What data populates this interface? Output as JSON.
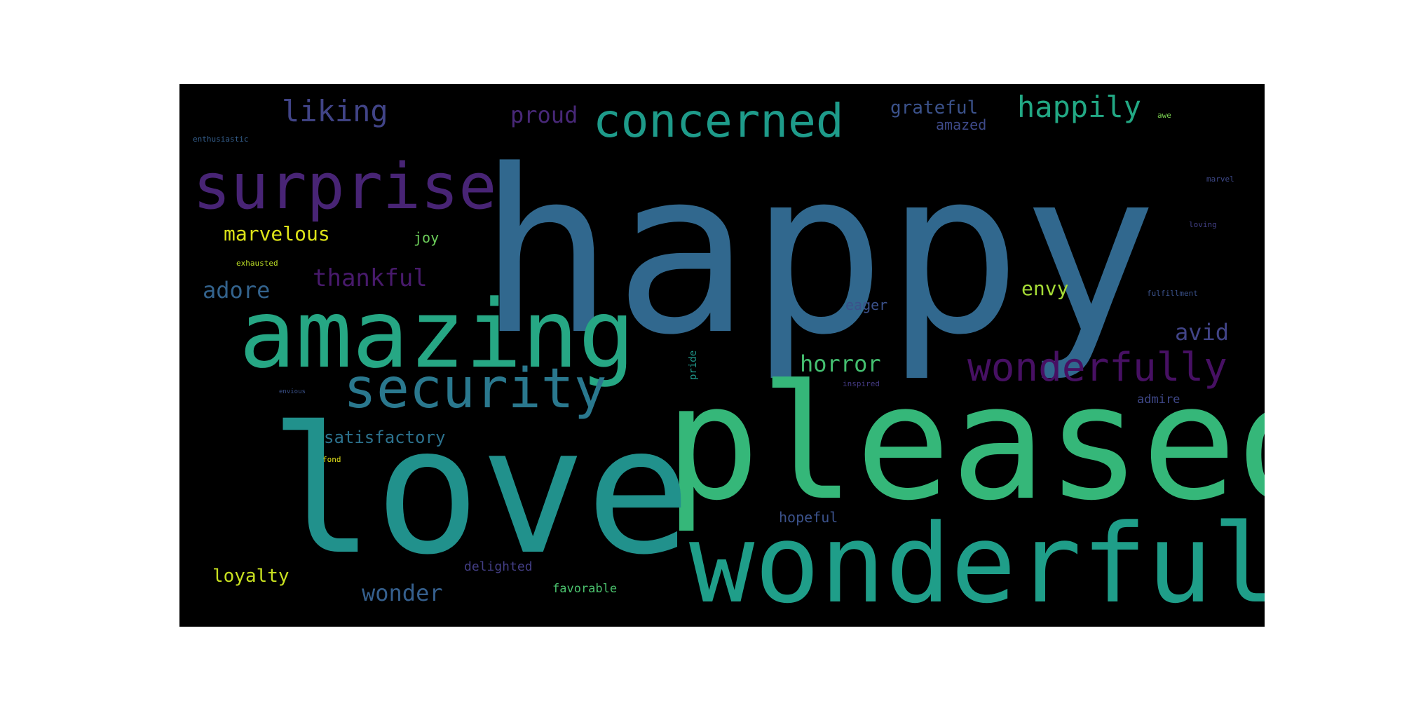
{
  "words": {
    "happy": "happy",
    "pleased": "pleased",
    "love": "love",
    "wonderful": "wonderful",
    "amazing": "amazing",
    "surprise": "surprise",
    "concerned": "concerned",
    "security": "security",
    "wonderfully": "wonderfully",
    "happily": "happily",
    "liking": "liking",
    "proud": "proud",
    "grateful": "grateful",
    "amazed": "amazed",
    "enthusiastic": "enthusiastic",
    "marvelous": "marvelous",
    "joy": "joy",
    "exhausted": "exhausted",
    "thankful": "thankful",
    "adore": "adore",
    "envy": "envy",
    "eager": "eager",
    "horror": "horror",
    "avid": "avid",
    "pride": "pride",
    "inspired": "inspired",
    "admire": "admire",
    "satisfactory": "satisfactory",
    "fond": "fond",
    "hopeful": "hopeful",
    "loyalty": "loyalty",
    "delighted": "delighted",
    "wonder": "wonder",
    "favorable": "favorable",
    "marvel": "marvel",
    "loving": "loving",
    "fulfillment": "fulfillment",
    "awe": "awe",
    "envious": "envious"
  },
  "colors": {
    "background": "#000000",
    "happy": "#31688e",
    "pleased": "#35b779",
    "love": "#21918c",
    "wonderful": "#1f9e89",
    "amazing": "#26a784",
    "surprise": "#482475",
    "concerned": "#1e9b8a",
    "security": "#2a788e",
    "wonderfully": "#471063",
    "happily": "#22a884",
    "liking": "#414487",
    "proud": "#482878",
    "grateful": "#3b528b",
    "amazed": "#3e4a89",
    "enthusiastic": "#355f8d",
    "marvelous": "#dde318",
    "joy": "#6ccd5a",
    "exhausted": "#bddf26",
    "thankful": "#481a6c",
    "adore": "#33638d",
    "envy": "#a5db36",
    "eager": "#3b528b",
    "horror": "#44bf70",
    "avid": "#414487",
    "pride": "#1f988b",
    "inspired": "#443a83",
    "admire": "#3f4889",
    "satisfactory": "#2c728e",
    "fond": "#e5e419",
    "hopeful": "#3b528b",
    "loyalty": "#c8e020",
    "delighted": "#433e85",
    "wonder": "#355f8d",
    "favorable": "#4ac16d",
    "marvel": "#3e4989",
    "loving": "#424086",
    "fulfillment": "#3b528b",
    "awe": "#7ad151",
    "envious": "#3b528b"
  }
}
